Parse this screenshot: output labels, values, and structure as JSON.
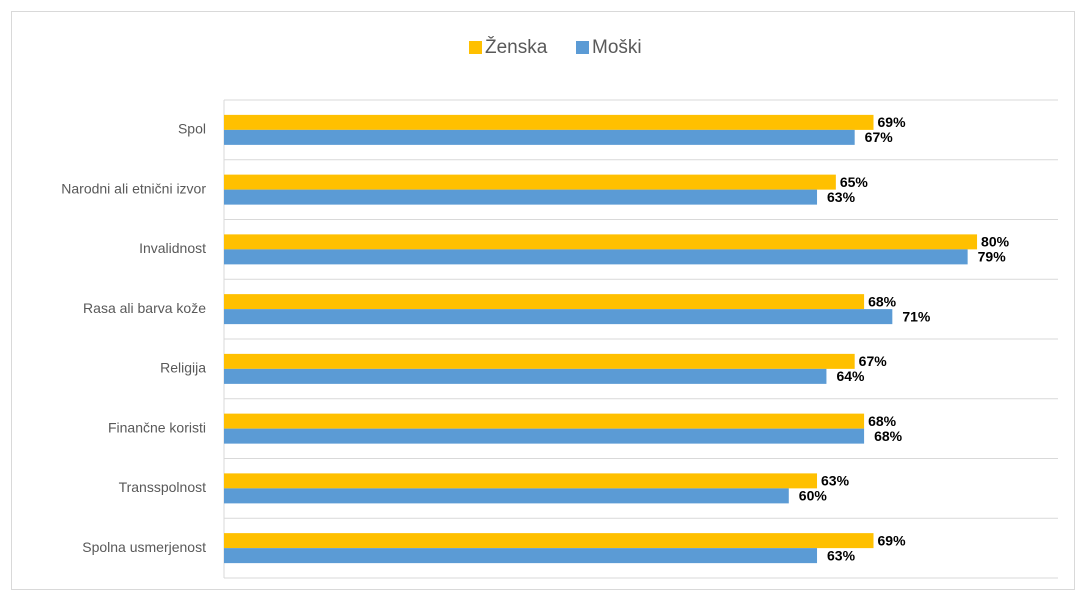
{
  "chart_data": {
    "type": "hbar",
    "categories": [
      "Spol",
      "Narodni ali etnični izvor",
      "Invalidnost",
      "Rasa ali barva kože",
      "Religija",
      "Finančne koristi",
      "Transspolnost",
      "Spolna usmerjenost"
    ],
    "series": [
      {
        "name": "Ženska",
        "color": "#FFC000",
        "values": [
          69,
          65,
          80,
          68,
          67,
          68,
          63,
          69
        ],
        "value_labels": [
          "69%",
          "65%",
          "80%",
          "68%",
          "67%",
          "68%",
          "63%",
          "69%"
        ]
      },
      {
        "name": "Moški",
        "color": "#5B9BD5",
        "values": [
          67,
          63,
          79,
          71,
          64,
          68,
          60,
          63
        ],
        "value_labels": [
          "67%",
          "63%",
          "79%",
          "71%",
          "64%",
          "68%",
          "60%",
          "63%"
        ]
      }
    ],
    "xlim": [
      0,
      88.6
    ],
    "legend": "top"
  }
}
